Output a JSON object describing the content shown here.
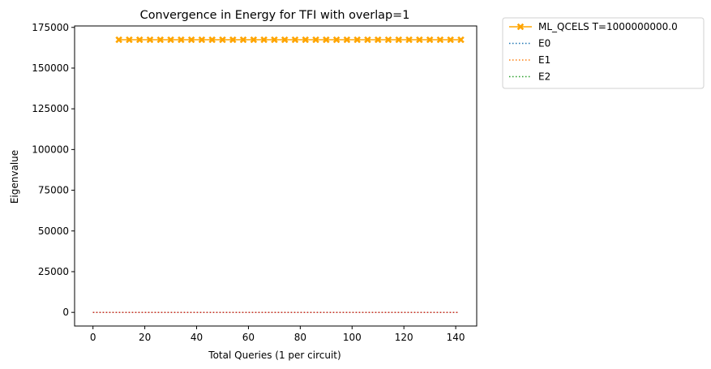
{
  "chart_data": {
    "type": "line",
    "title": "Convergence in Energy for TFI with overlap=1",
    "xlabel": "Total Queries (1 per circuit)",
    "ylabel": "Eigenvalue",
    "xlim": [
      -7.1,
      148.1
    ],
    "ylim": [
      -8375,
      175875
    ],
    "xticks": [
      0,
      20,
      40,
      60,
      80,
      100,
      120,
      140
    ],
    "yticks": [
      0,
      25000,
      50000,
      75000,
      100000,
      125000,
      150000,
      175000
    ],
    "legend_position": "outside upper right",
    "series": [
      {
        "name": "ML_QCELS T=1000000000.0",
        "color": "#ffa500",
        "linestyle": "solid",
        "marker": "X",
        "x": [
          10,
          14,
          18,
          22,
          26,
          30,
          34,
          38,
          42,
          46,
          50,
          54,
          58,
          62,
          66,
          70,
          74,
          78,
          82,
          86,
          90,
          94,
          98,
          102,
          106,
          110,
          114,
          118,
          122,
          126,
          130,
          134,
          138,
          142
        ],
        "y": [
          167400,
          167400,
          167400,
          167400,
          167400,
          167400,
          167400,
          167400,
          167400,
          167400,
          167400,
          167400,
          167400,
          167400,
          167400,
          167400,
          167400,
          167400,
          167400,
          167400,
          167400,
          167400,
          167400,
          167400,
          167400,
          167400,
          167400,
          167400,
          167400,
          167400,
          167400,
          167400,
          167400,
          167400
        ]
      },
      {
        "name": "E0",
        "color": "#1f77b4",
        "linestyle": "dotted",
        "x": [
          0,
          141
        ],
        "y": [
          -20.5,
          -20.5
        ]
      },
      {
        "name": "E1",
        "color": "#ff7f0e",
        "linestyle": "dotted",
        "x": [
          0,
          141
        ],
        "y": [
          -20.3,
          -20.3
        ]
      },
      {
        "name": "E2",
        "color": "#2ca02c",
        "linestyle": "dotted",
        "x": [
          0,
          141
        ],
        "y": [
          -20.1,
          -20.1
        ]
      }
    ],
    "extra_lines": [
      {
        "color": "#d62728",
        "linestyle": "dotted",
        "x": [
          0,
          141
        ],
        "y": [
          -19.9,
          -19.9
        ]
      }
    ]
  }
}
